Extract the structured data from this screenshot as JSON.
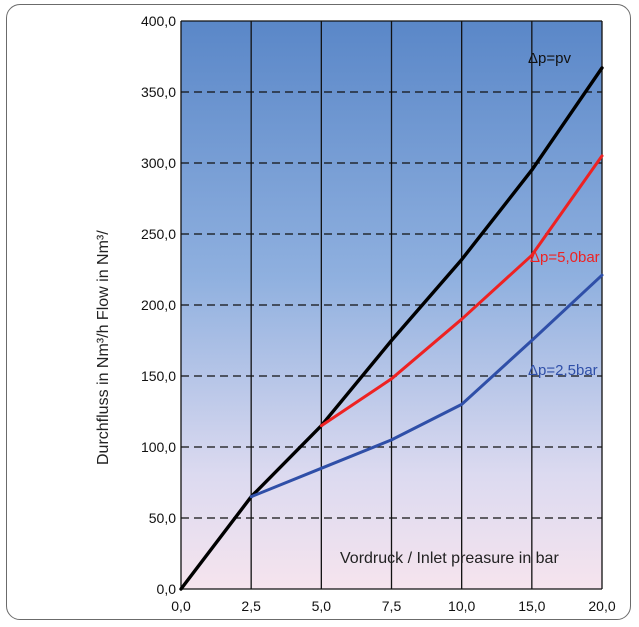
{
  "chart_data": {
    "type": "line",
    "ylabel": "Durchfluss in Nm³/h  Flow in Nm³/",
    "xlabel": "Vordruck / Inlet preasure in bar",
    "x_ticks": [
      "0,0",
      "2,5",
      "5,0",
      "7,5",
      "10,0",
      "15,0",
      "20,0"
    ],
    "x_tick_values": [
      0,
      2.5,
      5,
      7.5,
      10,
      15,
      20
    ],
    "y_ticks": [
      "0,0",
      "50,0",
      "100,0",
      "150,0",
      "200,0",
      "250,0",
      "300,0",
      "350,0",
      "400,0"
    ],
    "y_tick_values": [
      0,
      50,
      100,
      150,
      200,
      250,
      300,
      350,
      400
    ],
    "ylim": [
      0,
      400
    ],
    "x_axis_note": "x axis: 2.5 bar steps up to 10,0, then 5 bar steps to 20,0 (equal spacing)",
    "grid": "solid vertical lines, dashed horizontal lines",
    "background": "gradient from blue (top) to pink (bottom)",
    "series": [
      {
        "name": "Δp=pv",
        "color": "#000000",
        "points": [
          [
            0,
            0
          ],
          [
            2.5,
            65
          ],
          [
            5,
            115
          ],
          [
            7.5,
            175
          ],
          [
            10,
            232
          ],
          [
            15,
            295
          ],
          [
            20,
            367
          ]
        ]
      },
      {
        "name": "Δp=5,0bar",
        "color": "#ee2222",
        "points": [
          [
            5,
            115
          ],
          [
            7.5,
            148
          ],
          [
            10,
            190
          ],
          [
            15,
            235
          ],
          [
            20,
            305
          ]
        ]
      },
      {
        "name": "Δp=2,5bar",
        "color": "#2f4fa8",
        "points": [
          [
            2.5,
            65
          ],
          [
            5,
            85
          ],
          [
            7.5,
            105
          ],
          [
            10,
            130
          ],
          [
            15,
            175
          ],
          [
            20,
            221
          ]
        ]
      }
    ]
  }
}
